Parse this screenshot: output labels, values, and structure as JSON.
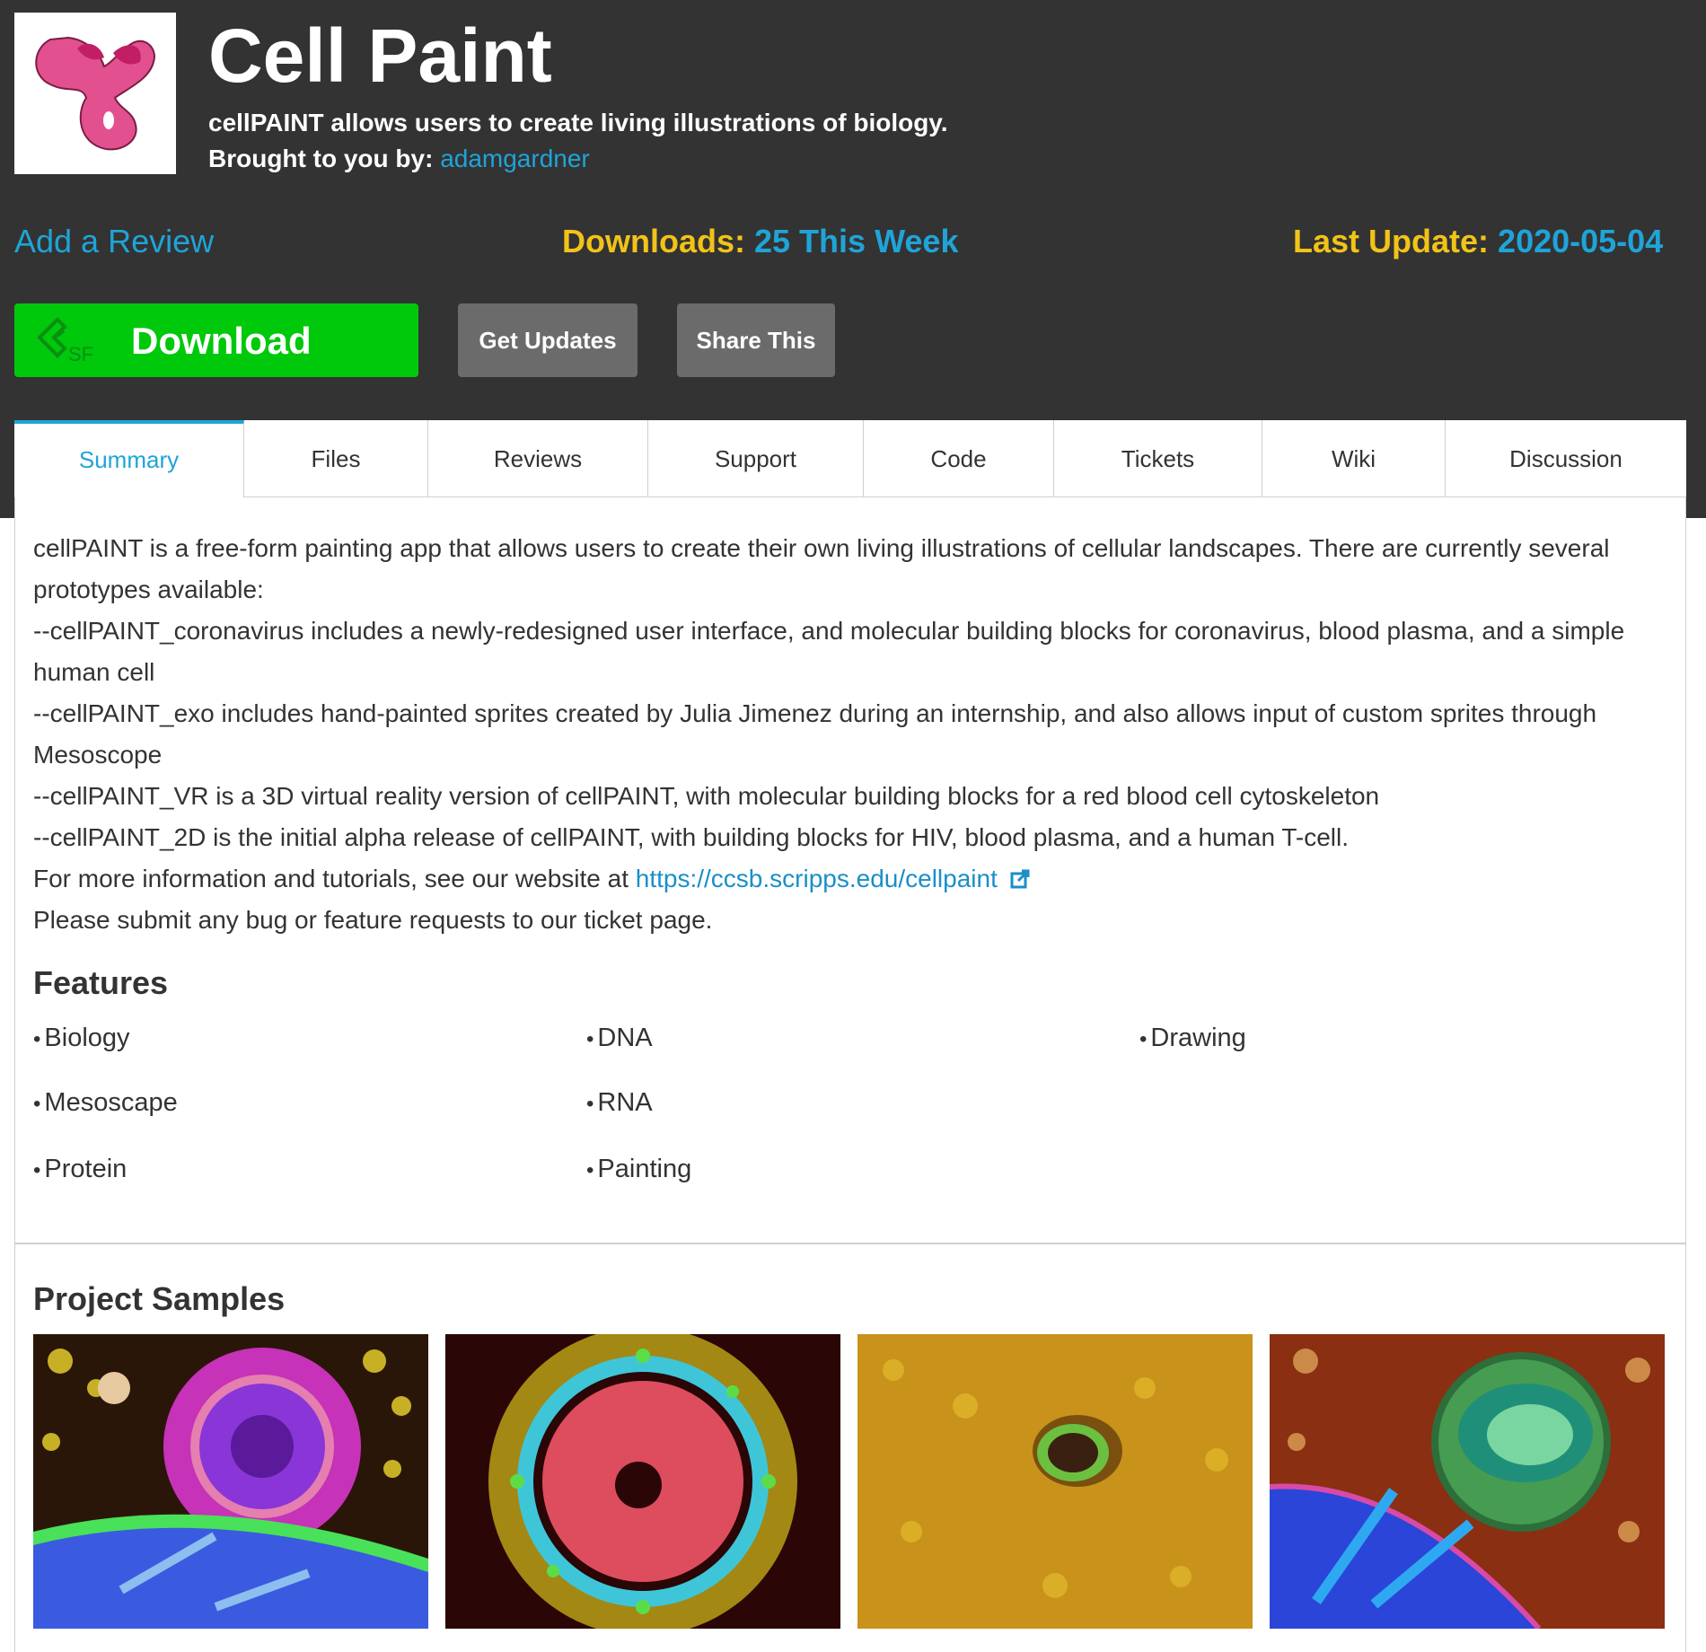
{
  "project": {
    "title": "Cell Paint",
    "tagline": "cellPAINT allows users to create living illustrations of biology.",
    "byline_prefix": "Brought to you by:",
    "author": "adamgardner"
  },
  "stats": {
    "add_review": "Add a Review",
    "downloads_label": "Downloads:",
    "downloads_value": "25 This Week",
    "last_update_label": "Last Update:",
    "last_update_value": "2020-05-04"
  },
  "buttons": {
    "download": "Download",
    "download_badge": "SF",
    "get_updates": "Get Updates",
    "share": "Share This"
  },
  "tabs": [
    "Summary",
    "Files",
    "Reviews",
    "Support",
    "Code",
    "Tickets",
    "Wiki",
    "Discussion"
  ],
  "description": {
    "line1": "cellPAINT is a free-form painting app that allows users to create their own living illustrations of cellular landscapes. There are currently several prototypes available:",
    "line2": "--cellPAINT_coronavirus includes a newly-redesigned user interface, and molecular building blocks for coronavirus, blood plasma, and a simple human cell",
    "line3": "--cellPAINT_exo includes hand-painted sprites created by Julia Jimenez during an internship, and also allows input of custom sprites through Mesoscope",
    "line4": "--cellPAINT_VR is a 3D virtual reality version of cellPAINT, with molecular building blocks for a red blood cell cytoskeleton",
    "line5": "--cellPAINT_2D is the initial alpha release of cellPAINT, with building blocks for HIV, blood plasma, and a human T-cell.",
    "more_info_prefix": "For more information and tutorials, see our website at",
    "more_info_link": "https://ccsb.scripps.edu/cellpaint",
    "bug_line": "Please submit any bug or feature requests to our ticket page."
  },
  "features": {
    "heading": "Features",
    "items": [
      "Biology",
      "DNA",
      "Drawing",
      "Mesoscape",
      "RNA",
      "Protein",
      "Painting"
    ]
  },
  "samples": {
    "heading": "Project Samples"
  },
  "colors": {
    "hero_bg": "#333333",
    "accent_blue": "#1fa4d8",
    "accent_yellow": "#f2c318",
    "download_green": "#00c80b",
    "gray_button": "#6b6b6b"
  },
  "icons": [
    "cellpaint-logo",
    "sourceforge-icon",
    "external-link-icon"
  ]
}
